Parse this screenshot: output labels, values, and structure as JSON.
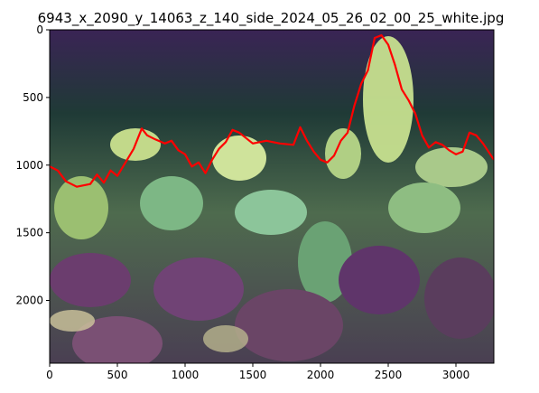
{
  "figure": {
    "title": "6943_x_2090_y_14063_z_140_side_2024_05_26_02_00_25_white.jpg"
  },
  "image": {
    "description_colors": {
      "sky_top": "#3a2455",
      "sky_mid": "#1f3a36",
      "plants_light": "#b9d889",
      "plants_green": "#6fae6a",
      "plants_purple": "#6a3a6f",
      "outline": "#ff0000"
    }
  },
  "chart_data": {
    "type": "line",
    "xlabel": "",
    "ylabel": "",
    "xlim": [
      0,
      3280
    ],
    "ylim": [
      2464,
      0
    ],
    "x_ticks": [
      0,
      500,
      1000,
      1500,
      2000,
      2500,
      3000
    ],
    "y_ticks": [
      0,
      500,
      1000,
      1500,
      2000
    ],
    "outline_series": {
      "color": "#ff0000",
      "x": [
        0,
        60,
        120,
        200,
        300,
        350,
        400,
        450,
        500,
        560,
        620,
        680,
        720,
        780,
        850,
        900,
        950,
        1000,
        1050,
        1100,
        1150,
        1200,
        1250,
        1300,
        1350,
        1400,
        1500,
        1600,
        1700,
        1800,
        1850,
        1900,
        1950,
        2000,
        2050,
        2100,
        2150,
        2200,
        2250,
        2300,
        2350,
        2400,
        2450,
        2500,
        2550,
        2600,
        2650,
        2700,
        2750,
        2800,
        2850,
        2900,
        2950,
        3000,
        3050,
        3100,
        3150,
        3200,
        3280
      ],
      "y": [
        1010,
        1040,
        1120,
        1160,
        1140,
        1070,
        1130,
        1040,
        1080,
        980,
        880,
        730,
        780,
        810,
        840,
        820,
        890,
        920,
        1010,
        980,
        1060,
        960,
        880,
        830,
        740,
        760,
        840,
        820,
        840,
        850,
        720,
        820,
        900,
        960,
        980,
        930,
        820,
        760,
        560,
        400,
        300,
        60,
        40,
        110,
        260,
        440,
        520,
        620,
        780,
        870,
        830,
        850,
        890,
        920,
        900,
        760,
        780,
        840,
        960
      ]
    }
  }
}
